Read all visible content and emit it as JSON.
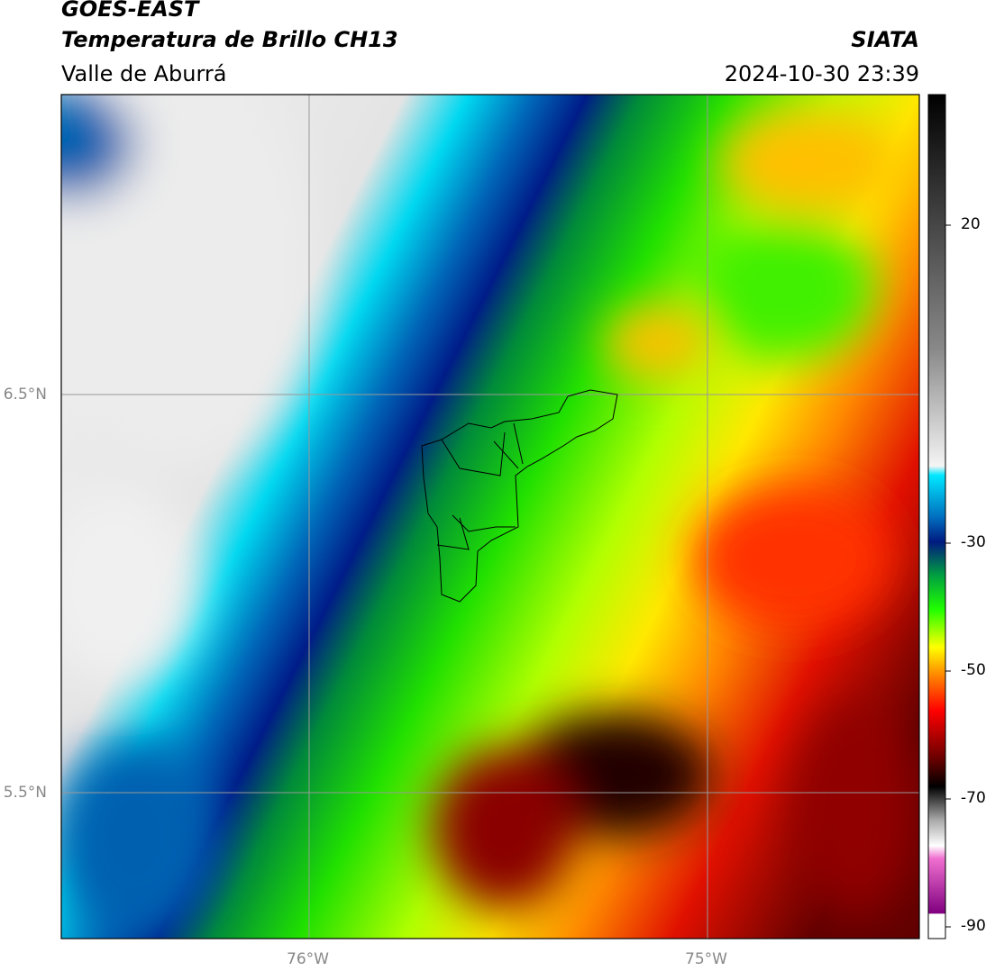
{
  "header": {
    "title": "GOES-EAST",
    "subtitle": "Temperatura de Brillo CH13",
    "region": "Valle de Aburrá",
    "source": "SIATA",
    "timestamp": "2024-10-30 23:39"
  },
  "map": {
    "lat_labels": [
      "6.5°N",
      "5.5°N"
    ],
    "lon_labels": [
      "76°W",
      "75°W"
    ]
  },
  "colorbar": {
    "ticks": [
      20,
      -30,
      -50,
      -70,
      -90
    ]
  }
}
